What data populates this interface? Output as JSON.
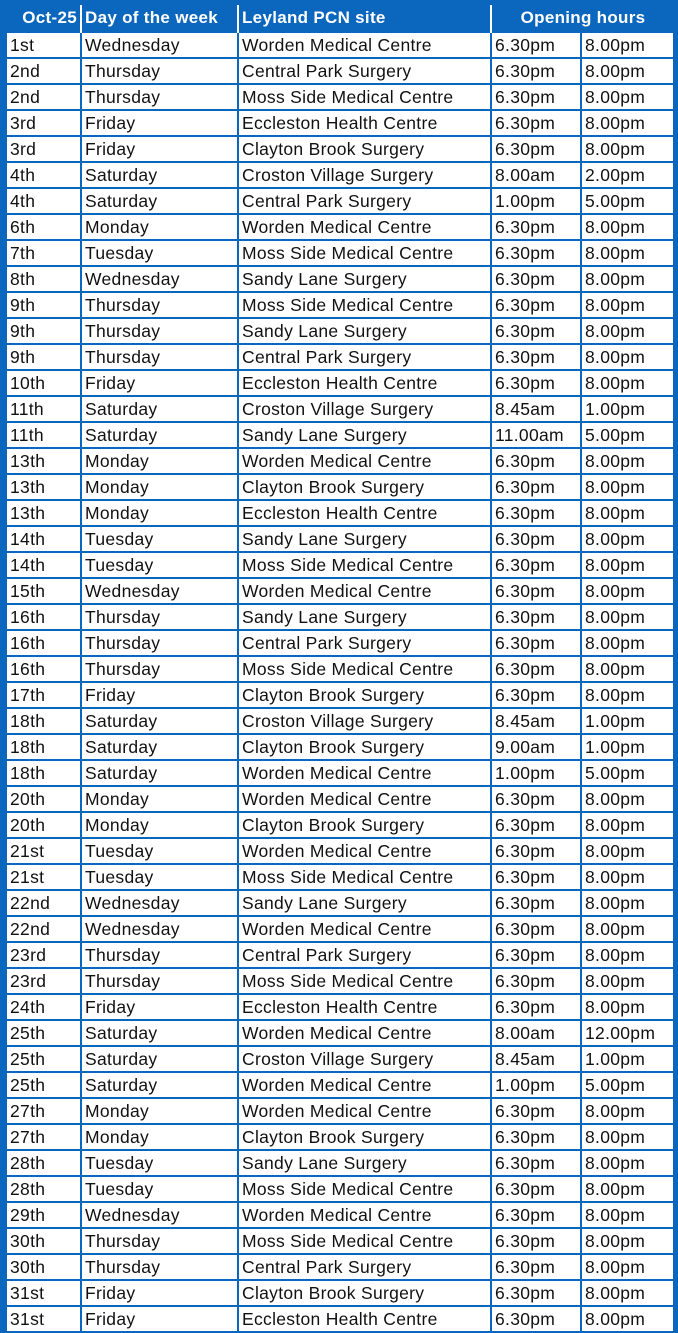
{
  "headers": {
    "date": "Oct-25",
    "day": "Day of the week",
    "site": "Leyland PCN site",
    "hours": "Opening hours"
  },
  "rows": [
    [
      "1st",
      "Wednesday",
      "Worden Medical Centre",
      "6.30pm",
      "8.00pm"
    ],
    [
      "2nd",
      "Thursday",
      "Central Park Surgery",
      "6.30pm",
      "8.00pm"
    ],
    [
      "2nd",
      "Thursday",
      "Moss Side Medical Centre",
      "6.30pm",
      "8.00pm"
    ],
    [
      "3rd",
      "Friday",
      "Eccleston Health Centre",
      "6.30pm",
      "8.00pm"
    ],
    [
      "3rd",
      "Friday",
      "Clayton Brook Surgery",
      "6.30pm",
      "8.00pm"
    ],
    [
      "4th",
      "Saturday",
      "Croston Village Surgery",
      "8.00am",
      "2.00pm"
    ],
    [
      "4th",
      "Saturday",
      "Central Park Surgery",
      "1.00pm",
      "5.00pm"
    ],
    [
      "6th",
      "Monday",
      "Worden Medical Centre",
      "6.30pm",
      "8.00pm"
    ],
    [
      "7th",
      "Tuesday",
      "Moss Side Medical Centre",
      "6.30pm",
      "8.00pm"
    ],
    [
      "8th",
      "Wednesday",
      "Sandy Lane Surgery",
      "6.30pm",
      "8.00pm"
    ],
    [
      "9th",
      "Thursday",
      "Moss Side Medical Centre",
      "6.30pm",
      "8.00pm"
    ],
    [
      "9th",
      "Thursday",
      "Sandy Lane Surgery",
      "6.30pm",
      "8.00pm"
    ],
    [
      "9th",
      "Thursday",
      "Central Park Surgery",
      "6.30pm",
      "8.00pm"
    ],
    [
      "10th",
      "Friday",
      "Eccleston Health Centre",
      "6.30pm",
      "8.00pm"
    ],
    [
      "11th",
      "Saturday",
      "Croston Village Surgery",
      "8.45am",
      "1.00pm"
    ],
    [
      "11th",
      "Saturday",
      "Sandy Lane Surgery",
      "11.00am",
      "5.00pm"
    ],
    [
      "13th",
      "Monday",
      "Worden Medical Centre",
      "6.30pm",
      "8.00pm"
    ],
    [
      "13th",
      "Monday",
      "Clayton Brook Surgery",
      "6.30pm",
      "8.00pm"
    ],
    [
      "13th",
      "Monday",
      "Eccleston Health Centre",
      "6.30pm",
      "8.00pm"
    ],
    [
      "14th",
      "Tuesday",
      "Sandy Lane Surgery",
      "6.30pm",
      "8.00pm"
    ],
    [
      "14th",
      "Tuesday",
      "Moss Side Medical Centre",
      "6.30pm",
      "8.00pm"
    ],
    [
      "15th",
      "Wednesday",
      "Worden Medical Centre",
      "6.30pm",
      "8.00pm"
    ],
    [
      "16th",
      "Thursday",
      "Sandy Lane Surgery",
      "6.30pm",
      "8.00pm"
    ],
    [
      "16th",
      "Thursday",
      "Central Park Surgery",
      "6.30pm",
      "8.00pm"
    ],
    [
      "16th",
      "Thursday",
      "Moss Side Medical Centre",
      "6.30pm",
      "8.00pm"
    ],
    [
      "17th",
      "Friday",
      "Clayton Brook Surgery",
      "6.30pm",
      "8.00pm"
    ],
    [
      "18th",
      "Saturday",
      "Croston Village Surgery",
      "8.45am",
      "1.00pm"
    ],
    [
      "18th",
      "Saturday",
      "Clayton Brook Surgery",
      "9.00am",
      "1.00pm"
    ],
    [
      "18th",
      "Saturday",
      "Worden Medical Centre",
      "1.00pm",
      "5.00pm"
    ],
    [
      "20th",
      "Monday",
      "Worden Medical Centre",
      "6.30pm",
      "8.00pm"
    ],
    [
      "20th",
      "Monday",
      "Clayton Brook Surgery",
      "6.30pm",
      "8.00pm"
    ],
    [
      "21st",
      "Tuesday",
      "Worden Medical Centre",
      "6.30pm",
      "8.00pm"
    ],
    [
      "21st",
      "Tuesday",
      "Moss Side Medical Centre",
      "6.30pm",
      "8.00pm"
    ],
    [
      "22nd",
      "Wednesday",
      "Sandy Lane Surgery",
      "6.30pm",
      "8.00pm"
    ],
    [
      "22nd",
      "Wednesday",
      "Worden Medical Centre",
      "6.30pm",
      "8.00pm"
    ],
    [
      "23rd",
      "Thursday",
      "Central Park Surgery",
      "6.30pm",
      "8.00pm"
    ],
    [
      "23rd",
      "Thursday",
      "Moss Side Medical Centre",
      "6.30pm",
      "8.00pm"
    ],
    [
      "24th",
      "Friday",
      "Eccleston Health Centre",
      "6.30pm",
      "8.00pm"
    ],
    [
      "25th",
      "Saturday",
      "Worden Medical Centre",
      "8.00am",
      "12.00pm"
    ],
    [
      "25th",
      "Saturday",
      "Croston Village Surgery",
      "8.45am",
      "1.00pm"
    ],
    [
      "25th",
      "Saturday",
      "Worden Medical Centre",
      "1.00pm",
      "5.00pm"
    ],
    [
      "27th",
      "Monday",
      "Worden Medical Centre",
      "6.30pm",
      "8.00pm"
    ],
    [
      "27th",
      "Monday",
      "Clayton Brook Surgery",
      "6.30pm",
      "8.00pm"
    ],
    [
      "28th",
      "Tuesday",
      "Sandy Lane Surgery",
      "6.30pm",
      "8.00pm"
    ],
    [
      "28th",
      "Tuesday",
      "Moss Side Medical Centre",
      "6.30pm",
      "8.00pm"
    ],
    [
      "29th",
      "Wednesday",
      "Worden Medical Centre",
      "6.30pm",
      "8.00pm"
    ],
    [
      "30th",
      "Thursday",
      "Moss Side Medical Centre",
      "6.30pm",
      "8.00pm"
    ],
    [
      "30th",
      "Thursday",
      "Central Park Surgery",
      "6.30pm",
      "8.00pm"
    ],
    [
      "31st",
      "Friday",
      "Clayton Brook Surgery",
      "6.30pm",
      "8.00pm"
    ],
    [
      "31st",
      "Friday",
      "Eccleston Health Centre",
      "6.30pm",
      "8.00pm"
    ]
  ]
}
